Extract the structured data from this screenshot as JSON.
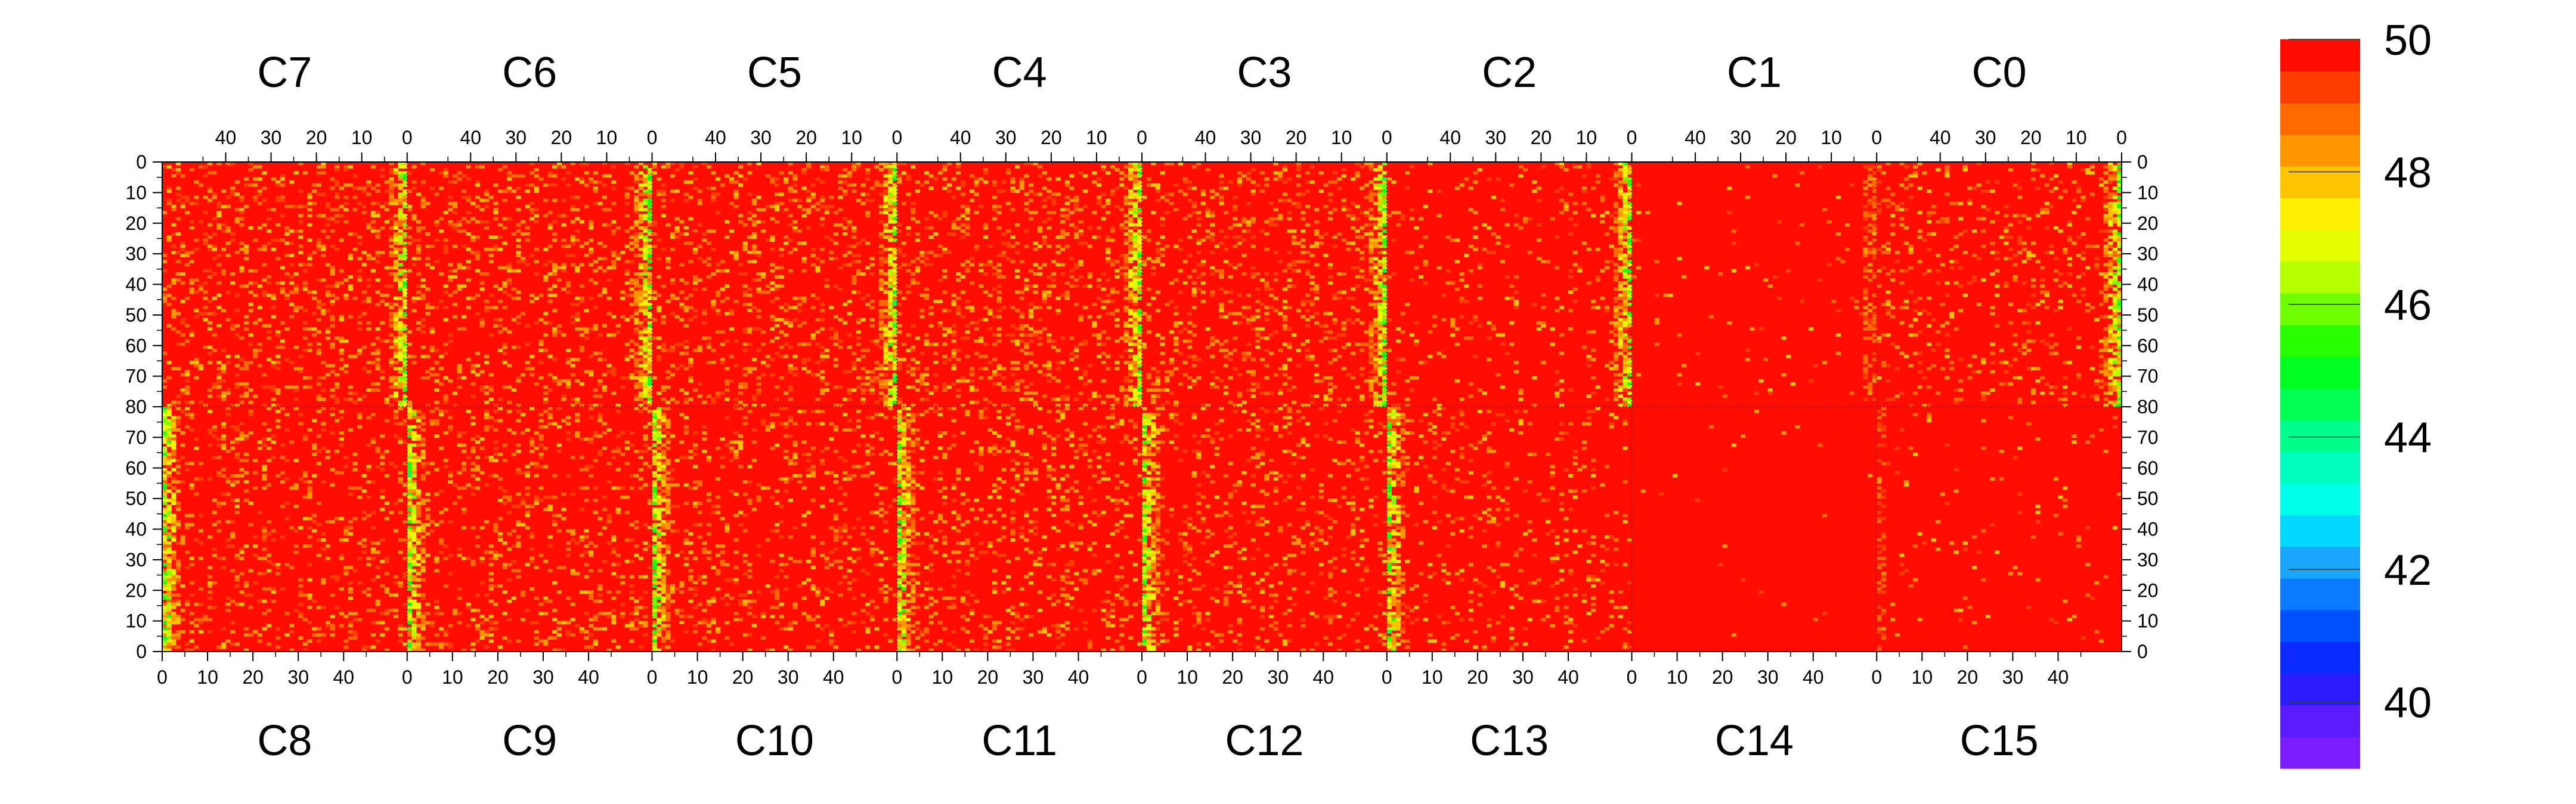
{
  "chart_data": {
    "type": "heatmap",
    "title": "",
    "xlabel": "",
    "ylabel": "",
    "description_of_layout": "",
    "top_panels": [
      "C7",
      "C6",
      "C5",
      "C4",
      "C3",
      "C2",
      "C1",
      "C0"
    ],
    "bottom_panels": [
      "C8",
      "C9",
      "C10",
      "C11",
      "C12",
      "C13",
      "C14",
      "C15"
    ],
    "panel_columns": 54,
    "panel_rows": 80,
    "top_axis": {
      "range": [
        54,
        0
      ],
      "ticks": [
        40,
        30,
        20,
        10,
        0
      ],
      "direction": "descending"
    },
    "bottom_axis": {
      "range": [
        0,
        54
      ],
      "ticks": [
        0,
        10,
        20,
        30,
        40
      ],
      "direction": "ascending"
    },
    "top_row_axis": {
      "range": [
        0,
        80
      ],
      "ticks": [
        0,
        10,
        20,
        30,
        40,
        50,
        60,
        70,
        80
      ]
    },
    "bottom_row_axis": {
      "range": [
        80,
        0
      ],
      "ticks": [
        70,
        60,
        50,
        40,
        30,
        20,
        10,
        0
      ]
    },
    "colorbar": {
      "range": [
        39,
        50
      ],
      "tick_values": [
        40,
        42,
        44,
        46,
        48,
        50
      ],
      "tick_labels": [
        "40",
        "42",
        "44",
        "46",
        "48",
        "50"
      ],
      "levels": 20,
      "colors": [
        "#7a1cff",
        "#5a1cff",
        "#2a1cff",
        "#0a2aff",
        "#0050ff",
        "#0a7aff",
        "#1aa6ff",
        "#00d7ff",
        "#00ffe8",
        "#00ffbe",
        "#00ff8a",
        "#00ff50",
        "#00ff20",
        "#28ff00",
        "#70ff00",
        "#b4ff00",
        "#e6ff00",
        "#ffef00",
        "#ffc400",
        "#ff9600",
        "#ff6a00",
        "#ff3c00",
        "#ff0d00"
      ]
    },
    "values": {
      "baseline": 50,
      "low_value_band_columns_near_0": [
        0,
        1,
        2,
        3
      ],
      "band_min_estimate": 45.5,
      "uniform_panels": [
        "C1",
        "C14",
        "C15"
      ],
      "note": ""
    }
  }
}
